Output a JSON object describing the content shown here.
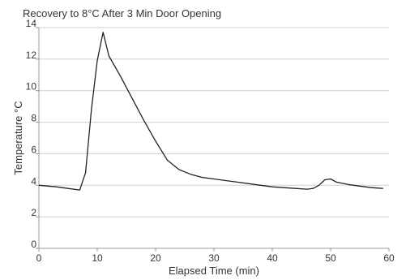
{
  "chart_data": {
    "type": "line",
    "title": "Recovery to 8°C After 3 Min Door Opening",
    "xlabel": "Elapsed Time (min)",
    "ylabel": "Temperature °C",
    "xlim": [
      0,
      60
    ],
    "ylim": [
      0,
      14
    ],
    "xticks": [
      0,
      10,
      20,
      30,
      40,
      50,
      60
    ],
    "yticks": [
      0,
      2,
      4,
      6,
      8,
      10,
      12,
      14
    ],
    "grid": true,
    "series": [
      {
        "color": "#222222",
        "x": [
          0,
          3,
          5,
          7,
          8,
          9,
          10,
          11,
          12,
          14,
          16,
          18,
          20,
          22,
          24,
          26,
          28,
          30,
          32,
          34,
          36,
          38,
          40,
          42,
          44,
          46,
          47,
          48,
          49,
          50,
          51,
          53,
          55,
          57,
          59
        ],
        "y": [
          4.0,
          3.9,
          3.8,
          3.7,
          4.8,
          8.8,
          11.9,
          13.7,
          12.2,
          10.9,
          9.5,
          8.1,
          6.8,
          5.6,
          5.0,
          4.7,
          4.5,
          4.4,
          4.3,
          4.2,
          4.1,
          4.0,
          3.9,
          3.85,
          3.8,
          3.75,
          3.8,
          4.0,
          4.35,
          4.4,
          4.2,
          4.05,
          3.95,
          3.85,
          3.8
        ]
      }
    ]
  }
}
